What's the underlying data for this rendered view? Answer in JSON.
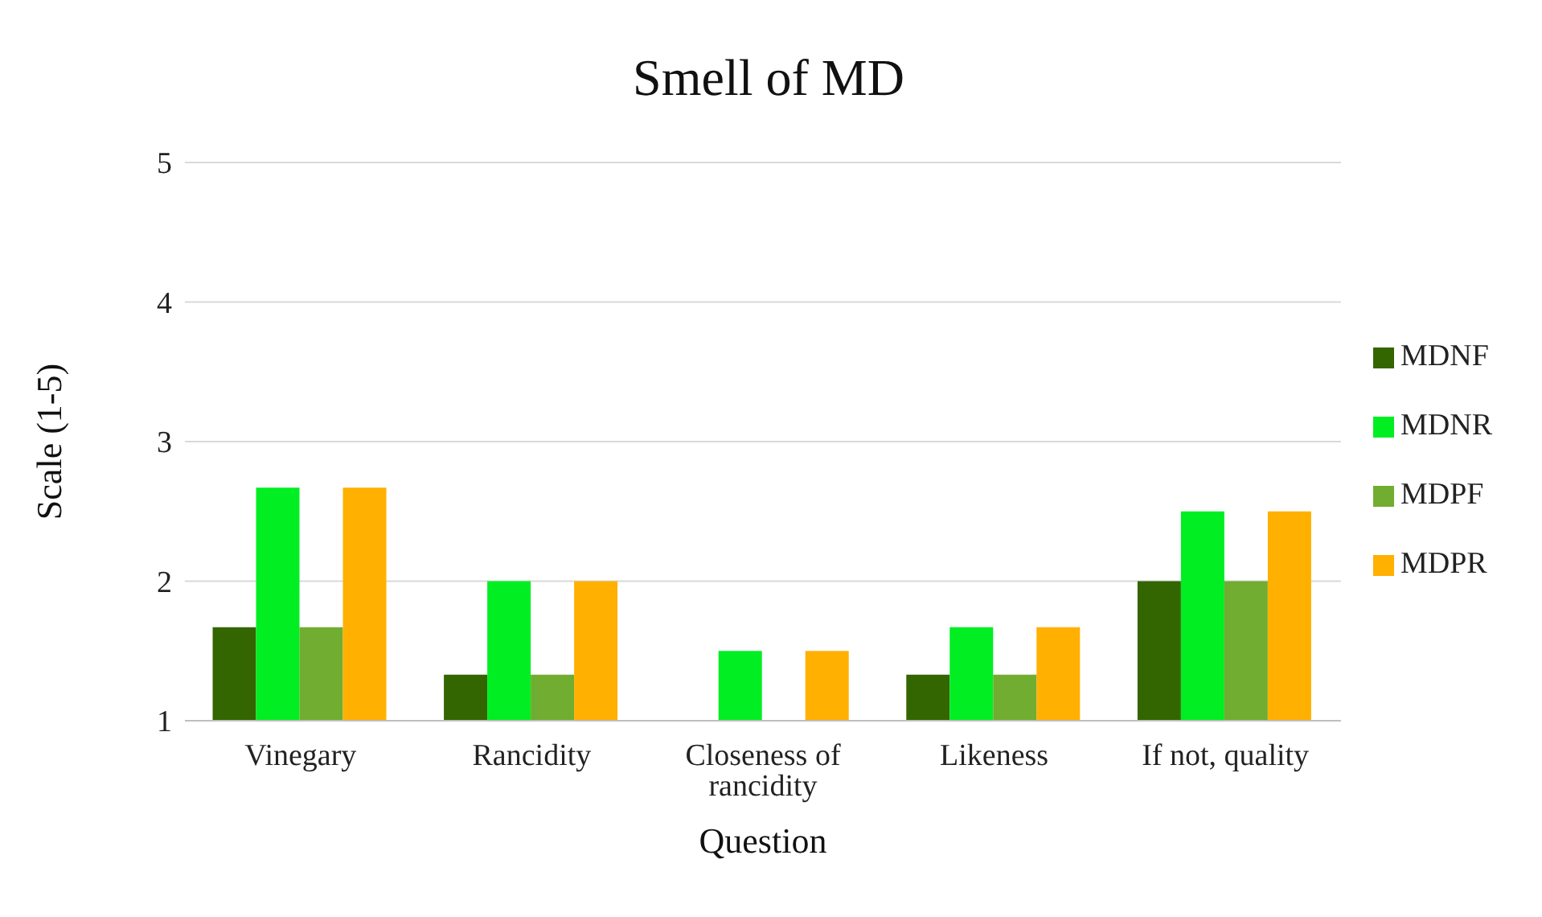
{
  "chart_data": {
    "type": "bar",
    "title": "Smell of MD",
    "xlabel": "Question",
    "ylabel": "Scale (1-5)",
    "categories": [
      "Vinegary",
      "Rancidity",
      "Closeness of rancidity",
      "Likeness",
      "If not, quality"
    ],
    "series": [
      {
        "name": "MDNF",
        "color": "#336600",
        "values": [
          1.67,
          1.33,
          1,
          1.33,
          2
        ]
      },
      {
        "name": "MDNR",
        "color": "#00ee22",
        "values": [
          2.67,
          2,
          1.5,
          1.67,
          2.5
        ]
      },
      {
        "name": "MDPF",
        "color": "#70ad30",
        "values": [
          1.67,
          1.33,
          1,
          1.33,
          2
        ]
      },
      {
        "name": "MDPR",
        "color": "#ffb000",
        "values": [
          2.67,
          2,
          1.5,
          1.67,
          2.5
        ]
      }
    ],
    "ylim": [
      1,
      5
    ],
    "yticks": [
      1,
      2,
      3,
      4,
      5
    ],
    "grid": "y",
    "legend": "right"
  }
}
